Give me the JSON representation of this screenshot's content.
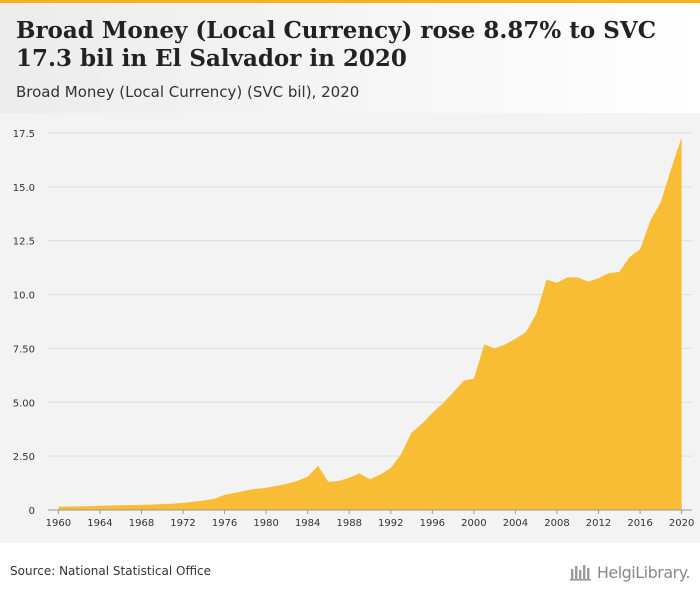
{
  "header": {
    "title": "Broad Money (Local Currency) rose 8.87% to SVC 17.3 bil in El Salvador in 2020",
    "subtitle": "Broad Money (Local Currency) (SVC bil), 2020"
  },
  "footer": {
    "source": "Source: National Statistical Office",
    "brand": "HelgiLibrary."
  },
  "colors": {
    "accent": "#f5b21f",
    "area_fill": "#f9bd35",
    "grid": "#dddddd"
  },
  "chart_data": {
    "type": "area",
    "x": [
      1960,
      1961,
      1962,
      1963,
      1964,
      1965,
      1966,
      1967,
      1968,
      1969,
      1970,
      1971,
      1972,
      1973,
      1974,
      1975,
      1976,
      1977,
      1978,
      1979,
      1980,
      1981,
      1982,
      1983,
      1984,
      1985,
      1986,
      1987,
      1988,
      1989,
      1990,
      1991,
      1992,
      1993,
      1994,
      1995,
      1996,
      1997,
      1998,
      1999,
      2000,
      2001,
      2002,
      2003,
      2004,
      2005,
      2006,
      2007,
      2008,
      2009,
      2010,
      2011,
      2012,
      2013,
      2014,
      2015,
      2016,
      2017,
      2018,
      2019,
      2020
    ],
    "series": [
      {
        "values": [
          0.15,
          0.16,
          0.17,
          0.18,
          0.2,
          0.21,
          0.22,
          0.23,
          0.24,
          0.25,
          0.27,
          0.29,
          0.33,
          0.38,
          0.44,
          0.52,
          0.7,
          0.8,
          0.9,
          0.98,
          1.03,
          1.12,
          1.22,
          1.35,
          1.55,
          2.05,
          1.3,
          1.35,
          1.5,
          1.7,
          1.42,
          1.65,
          1.95,
          2.6,
          3.6,
          4.0,
          4.5,
          4.95,
          5.45,
          6.0,
          6.1,
          7.68,
          7.5,
          7.68,
          7.95,
          8.25,
          9.1,
          10.7,
          10.55,
          10.8,
          10.8,
          10.6,
          10.75,
          11.0,
          11.05,
          11.75,
          12.1,
          13.45,
          14.3,
          15.85,
          17.3
        ]
      }
    ],
    "ylim": [
      0,
      17.5
    ],
    "xlim": [
      1959,
      2021
    ],
    "yticks": [
      0,
      2.5,
      5,
      7.5,
      10,
      12.5,
      15,
      17.5
    ],
    "ytick_labels": [
      "0",
      "2.50",
      "5.00",
      "7.50",
      "10.0",
      "12.5",
      "15.0",
      "17.5"
    ],
    "xticks": [
      1960,
      1964,
      1968,
      1972,
      1976,
      1980,
      1984,
      1988,
      1992,
      1996,
      2000,
      2004,
      2008,
      2012,
      2016,
      2020
    ],
    "xtick_labels": [
      "1960",
      "1964",
      "1968",
      "1972",
      "1976",
      "1980",
      "1984",
      "1988",
      "1992",
      "1996",
      "2000",
      "2004",
      "2008",
      "2012",
      "2016",
      "2020"
    ],
    "grid": true,
    "legend": "none"
  }
}
